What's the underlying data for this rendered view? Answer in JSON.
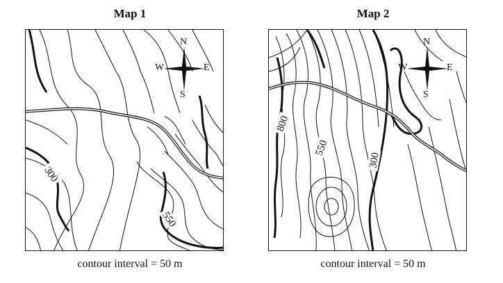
{
  "maps": [
    {
      "title": "Map 1",
      "caption": "contour interval = 50 m",
      "compass": {
        "n": "N",
        "e": "E",
        "s": "S",
        "w": "W"
      },
      "labels": [
        "300",
        "550"
      ]
    },
    {
      "title": "Map 2",
      "caption": "contour interval = 50 m",
      "compass": {
        "n": "N",
        "e": "E",
        "s": "S",
        "w": "W"
      },
      "labels": [
        "800",
        "550",
        "300"
      ]
    }
  ],
  "colors": {
    "ink": "#111111",
    "road": "#666666",
    "paper": "#ffffff"
  }
}
